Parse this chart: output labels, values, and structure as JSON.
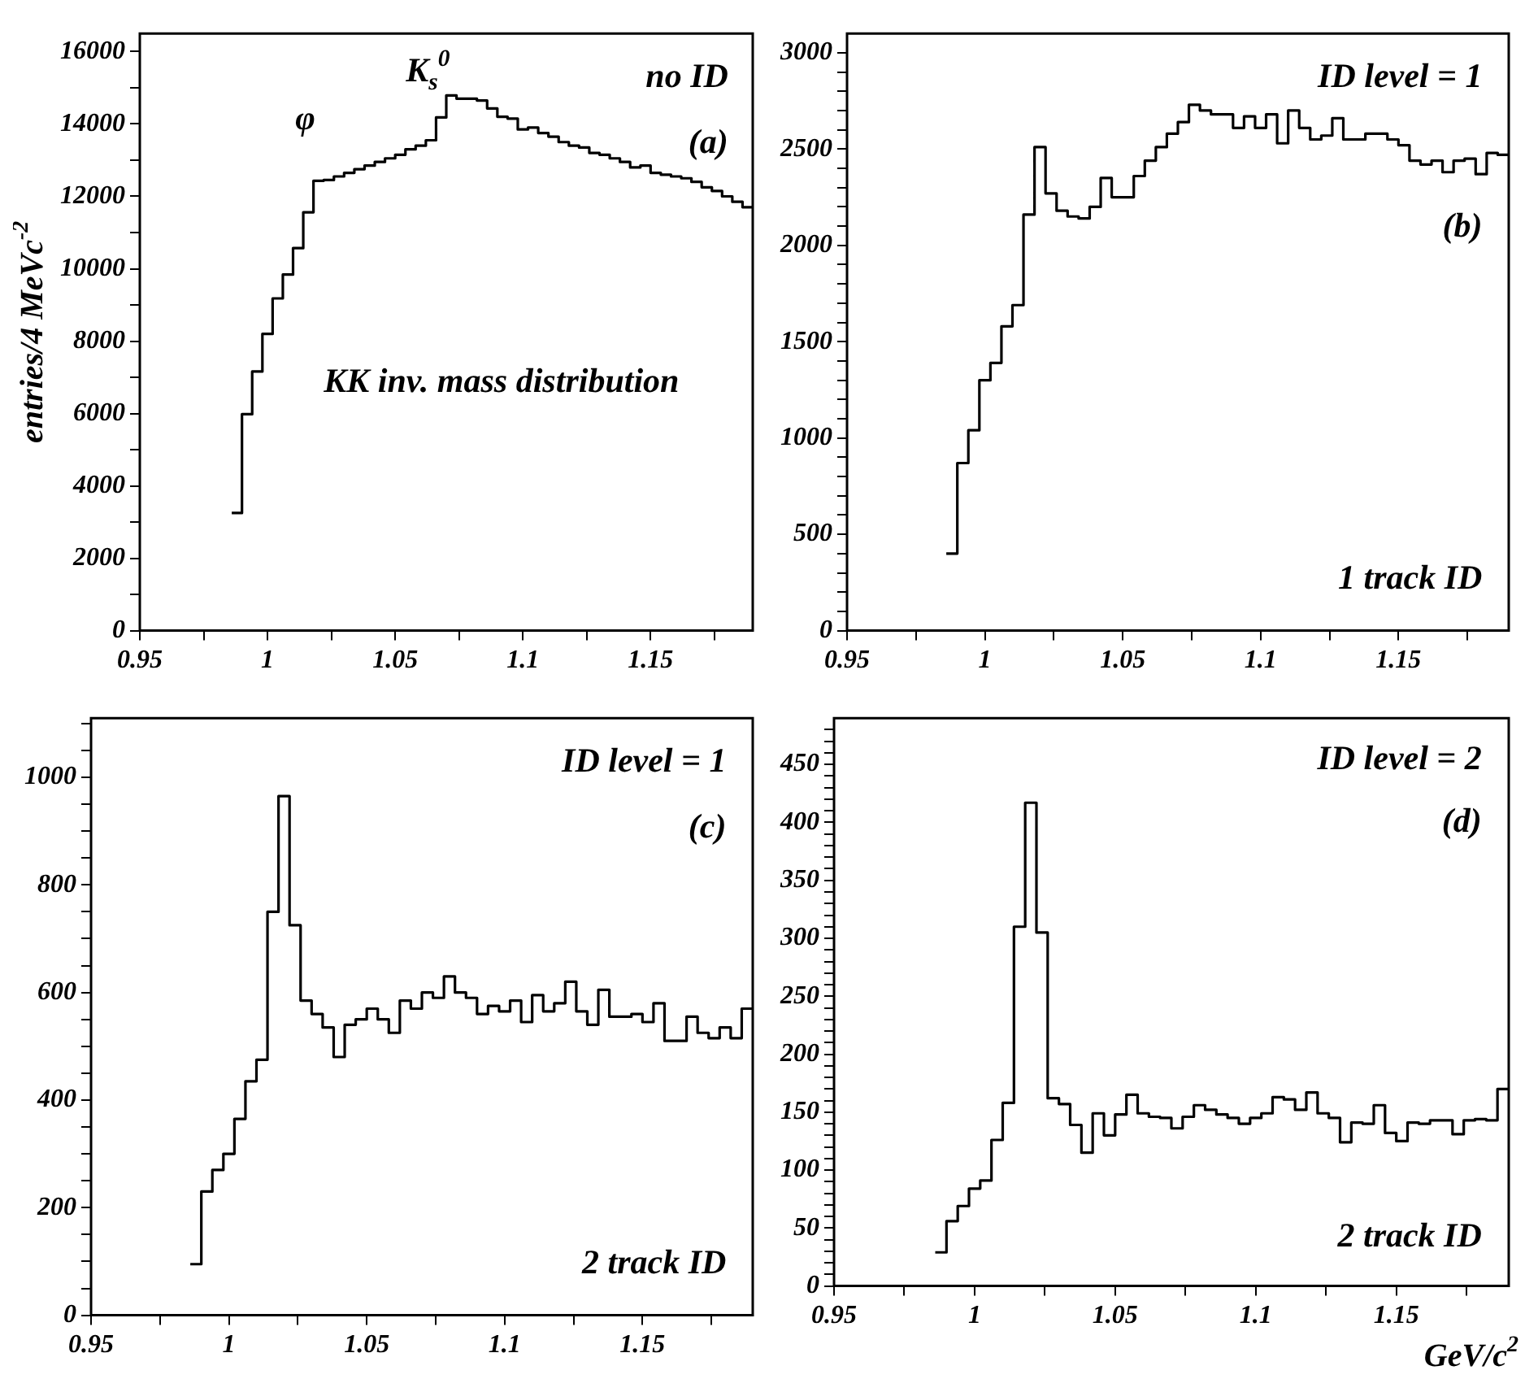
{
  "chart_data": [
    {
      "type": "histogram",
      "ylabel": "entries/4 MeVc$^{-2}$",
      "color": "#000000",
      "grid": false,
      "annotations": [
        "no ID",
        "(a)",
        "φ",
        "K$_{s}$$^{0}$",
        "KK inv. mass distribution"
      ],
      "bins": [
        0.986,
        0.99,
        0.994,
        0.998,
        1.002,
        1.006,
        1.01,
        1.014,
        1.018,
        1.022,
        1.026,
        1.03,
        1.034,
        1.038,
        1.042,
        1.046,
        1.05,
        1.054,
        1.058,
        1.062,
        1.066,
        1.07,
        1.074,
        1.078,
        1.082,
        1.086,
        1.09,
        1.094,
        1.098,
        1.102,
        1.106,
        1.11,
        1.114,
        1.118,
        1.122,
        1.126,
        1.13,
        1.134,
        1.138,
        1.142,
        1.146,
        1.15,
        1.154,
        1.158,
        1.162,
        1.166,
        1.17,
        1.174,
        1.178,
        1.182,
        1.186,
        1.19
      ],
      "values": [
        3250,
        5980,
        7160,
        8200,
        9180,
        9840,
        10570,
        11560,
        12430,
        12450,
        12550,
        12650,
        12750,
        12850,
        12950,
        13050,
        13150,
        13300,
        13400,
        13550,
        14180,
        14790,
        14700,
        14700,
        14650,
        14430,
        14200,
        14150,
        13850,
        13900,
        13750,
        13650,
        13500,
        13400,
        13350,
        13200,
        13150,
        13050,
        12950,
        12800,
        12850,
        12650,
        12600,
        12550,
        12500,
        12400,
        12250,
        12150,
        12000,
        11850,
        11700
      ],
      "xlim": [
        0.95,
        1.19
      ],
      "xticks": [
        0.95,
        {
          "value": 0.975,
          "label": null
        },
        1,
        {
          "value": 1.025,
          "label": null
        },
        1.05,
        {
          "value": 1.075,
          "label": null
        },
        1.1,
        {
          "value": 1.125,
          "label": null
        },
        1.15,
        {
          "value": 1.175,
          "label": null
        }
      ],
      "ylim": [
        0,
        16500
      ],
      "yticks": [
        0,
        {
          "value": 1000,
          "label": null
        },
        2000,
        {
          "value": 3000,
          "label": null
        },
        4000,
        {
          "value": 5000,
          "label": null
        },
        6000,
        {
          "value": 7000,
          "label": null
        },
        8000,
        {
          "value": 9000,
          "label": null
        },
        10000,
        {
          "value": 11000,
          "label": null
        },
        12000,
        {
          "value": 13000,
          "label": null
        },
        14000,
        {
          "value": 15000,
          "label": null
        },
        16000
      ]
    },
    {
      "type": "histogram",
      "color": "#000000",
      "grid": false,
      "annotations": [
        "ID level = 1",
        "(b)",
        "1 track ID"
      ],
      "bins": [
        0.986,
        0.99,
        0.994,
        0.998,
        1.002,
        1.006,
        1.01,
        1.014,
        1.018,
        1.022,
        1.026,
        1.03,
        1.034,
        1.038,
        1.042,
        1.046,
        1.05,
        1.054,
        1.058,
        1.062,
        1.066,
        1.07,
        1.074,
        1.078,
        1.082,
        1.086,
        1.09,
        1.094,
        1.098,
        1.102,
        1.106,
        1.11,
        1.114,
        1.118,
        1.122,
        1.126,
        1.13,
        1.134,
        1.138,
        1.142,
        1.146,
        1.15,
        1.154,
        1.158,
        1.162,
        1.166,
        1.17,
        1.174,
        1.178,
        1.182,
        1.186,
        1.19
      ],
      "values": [
        400,
        870,
        1040,
        1300,
        1390,
        1580,
        1690,
        2160,
        2510,
        2270,
        2180,
        2150,
        2140,
        2200,
        2350,
        2250,
        2250,
        2360,
        2440,
        2510,
        2580,
        2640,
        2730,
        2700,
        2680,
        2680,
        2610,
        2670,
        2610,
        2680,
        2530,
        2700,
        2610,
        2550,
        2570,
        2660,
        2550,
        2550,
        2580,
        2580,
        2550,
        2520,
        2440,
        2420,
        2440,
        2380,
        2440,
        2450,
        2370,
        2480,
        2470
      ],
      "xlim": [
        0.95,
        1.19
      ],
      "xticks": [
        0.95,
        {
          "value": 0.975,
          "label": null
        },
        1,
        {
          "value": 1.025,
          "label": null
        },
        1.05,
        {
          "value": 1.075,
          "label": null
        },
        1.1,
        {
          "value": 1.125,
          "label": null
        },
        1.15,
        {
          "value": 1.175,
          "label": null
        }
      ],
      "ylim": [
        0,
        3100
      ],
      "yticks": [
        0,
        {
          "value": 100,
          "label": null
        },
        {
          "value": 200,
          "label": null
        },
        {
          "value": 300,
          "label": null
        },
        {
          "value": 400,
          "label": null
        },
        500,
        {
          "value": 600,
          "label": null
        },
        {
          "value": 700,
          "label": null
        },
        {
          "value": 800,
          "label": null
        },
        {
          "value": 900,
          "label": null
        },
        1000,
        {
          "value": 1100,
          "label": null
        },
        {
          "value": 1200,
          "label": null
        },
        {
          "value": 1300,
          "label": null
        },
        {
          "value": 1400,
          "label": null
        },
        1500,
        {
          "value": 1600,
          "label": null
        },
        {
          "value": 1700,
          "label": null
        },
        {
          "value": 1800,
          "label": null
        },
        {
          "value": 1900,
          "label": null
        },
        2000,
        {
          "value": 2100,
          "label": null
        },
        {
          "value": 2200,
          "label": null
        },
        {
          "value": 2300,
          "label": null
        },
        {
          "value": 2400,
          "label": null
        },
        2500,
        {
          "value": 2600,
          "label": null
        },
        {
          "value": 2700,
          "label": null
        },
        {
          "value": 2800,
          "label": null
        },
        {
          "value": 2900,
          "label": null
        },
        3000
      ]
    },
    {
      "type": "histogram",
      "color": "#000000",
      "grid": false,
      "annotations": [
        "ID level = 1",
        "(c)",
        "2 track ID"
      ],
      "bins": [
        0.986,
        0.99,
        0.994,
        0.998,
        1.002,
        1.006,
        1.01,
        1.014,
        1.018,
        1.022,
        1.026,
        1.03,
        1.034,
        1.038,
        1.042,
        1.046,
        1.05,
        1.054,
        1.058,
        1.062,
        1.066,
        1.07,
        1.074,
        1.078,
        1.082,
        1.086,
        1.09,
        1.094,
        1.098,
        1.102,
        1.106,
        1.11,
        1.114,
        1.118,
        1.122,
        1.126,
        1.13,
        1.134,
        1.138,
        1.142,
        1.146,
        1.15,
        1.154,
        1.158,
        1.162,
        1.166,
        1.17,
        1.174,
        1.178,
        1.182,
        1.186,
        1.19
      ],
      "values": [
        95,
        230,
        270,
        300,
        365,
        435,
        475,
        750,
        965,
        725,
        585,
        560,
        535,
        480,
        540,
        550,
        570,
        550,
        525,
        585,
        570,
        600,
        590,
        630,
        600,
        590,
        560,
        575,
        565,
        585,
        545,
        595,
        565,
        580,
        620,
        565,
        540,
        605,
        555,
        555,
        560,
        545,
        580,
        510,
        510,
        555,
        525,
        515,
        535,
        515,
        570
      ],
      "xlim": [
        0.95,
        1.19
      ],
      "xticks": [
        0.95,
        {
          "value": 0.975,
          "label": null
        },
        1,
        {
          "value": 1.025,
          "label": null
        },
        1.05,
        {
          "value": 1.075,
          "label": null
        },
        1.1,
        {
          "value": 1.125,
          "label": null
        },
        1.15,
        {
          "value": 1.175,
          "label": null
        }
      ],
      "ylim": [
        0,
        1110
      ],
      "yticks": [
        0,
        {
          "value": 50,
          "label": null
        },
        {
          "value": 100,
          "label": null
        },
        {
          "value": 150,
          "label": null
        },
        200,
        {
          "value": 250,
          "label": null
        },
        {
          "value": 300,
          "label": null
        },
        {
          "value": 350,
          "label": null
        },
        400,
        {
          "value": 450,
          "label": null
        },
        {
          "value": 500,
          "label": null
        },
        {
          "value": 550,
          "label": null
        },
        600,
        {
          "value": 650,
          "label": null
        },
        {
          "value": 700,
          "label": null
        },
        {
          "value": 750,
          "label": null
        },
        800,
        {
          "value": 850,
          "label": null
        },
        {
          "value": 900,
          "label": null
        },
        {
          "value": 950,
          "label": null
        },
        1000,
        {
          "value": 1050,
          "label": null
        },
        {
          "value": 1100,
          "label": null
        }
      ]
    },
    {
      "type": "histogram",
      "xlabel": "GeV/c$^{2}$",
      "color": "#000000",
      "grid": false,
      "annotations": [
        "ID level = 2",
        "(d)",
        "2 track ID"
      ],
      "bins": [
        0.986,
        0.99,
        0.994,
        0.998,
        1.002,
        1.006,
        1.01,
        1.014,
        1.018,
        1.022,
        1.026,
        1.03,
        1.034,
        1.038,
        1.042,
        1.046,
        1.05,
        1.054,
        1.058,
        1.062,
        1.066,
        1.07,
        1.074,
        1.078,
        1.082,
        1.086,
        1.09,
        1.094,
        1.098,
        1.102,
        1.106,
        1.11,
        1.114,
        1.118,
        1.122,
        1.126,
        1.13,
        1.134,
        1.138,
        1.142,
        1.146,
        1.15,
        1.154,
        1.158,
        1.162,
        1.166,
        1.17,
        1.174,
        1.178,
        1.182,
        1.186,
        1.19
      ],
      "values": [
        29,
        56,
        69,
        84,
        91,
        126,
        158,
        310,
        417,
        305,
        162,
        157,
        139,
        115,
        149,
        130,
        148,
        165,
        149,
        146,
        145,
        136,
        146,
        156,
        152,
        148,
        145,
        140,
        145,
        149,
        163,
        161,
        152,
        167,
        149,
        145,
        124,
        141,
        140,
        156,
        132,
        125,
        141,
        140,
        143,
        143,
        131,
        143,
        144,
        143,
        170
      ],
      "xlim": [
        0.95,
        1.19
      ],
      "xticks": [
        0.95,
        {
          "value": 0.975,
          "label": null
        },
        1,
        {
          "value": 1.025,
          "label": null
        },
        1.05,
        {
          "value": 1.075,
          "label": null
        },
        1.1,
        {
          "value": 1.125,
          "label": null
        },
        1.15,
        {
          "value": 1.175,
          "label": null
        }
      ],
      "ylim": [
        0,
        490
      ],
      "yticks": [
        0,
        {
          "value": 10,
          "label": null
        },
        {
          "value": 20,
          "label": null
        },
        {
          "value": 30,
          "label": null
        },
        {
          "value": 40,
          "label": null
        },
        50,
        {
          "value": 60,
          "label": null
        },
        {
          "value": 70,
          "label": null
        },
        {
          "value": 80,
          "label": null
        },
        {
          "value": 90,
          "label": null
        },
        100,
        {
          "value": 110,
          "label": null
        },
        {
          "value": 120,
          "label": null
        },
        {
          "value": 130,
          "label": null
        },
        {
          "value": 140,
          "label": null
        },
        150,
        {
          "value": 160,
          "label": null
        },
        {
          "value": 170,
          "label": null
        },
        {
          "value": 180,
          "label": null
        },
        {
          "value": 190,
          "label": null
        },
        200,
        {
          "value": 210,
          "label": null
        },
        {
          "value": 220,
          "label": null
        },
        {
          "value": 230,
          "label": null
        },
        {
          "value": 240,
          "label": null
        },
        250,
        {
          "value": 260,
          "label": null
        },
        {
          "value": 270,
          "label": null
        },
        {
          "value": 280,
          "label": null
        },
        {
          "value": 290,
          "label": null
        },
        300,
        {
          "value": 310,
          "label": null
        },
        {
          "value": 320,
          "label": null
        },
        {
          "value": 330,
          "label": null
        },
        {
          "value": 340,
          "label": null
        },
        350,
        {
          "value": 360,
          "label": null
        },
        {
          "value": 370,
          "label": null
        },
        {
          "value": 380,
          "label": null
        },
        {
          "value": 390,
          "label": null
        },
        400,
        {
          "value": 410,
          "label": null
        },
        {
          "value": 420,
          "label": null
        },
        {
          "value": 430,
          "label": null
        },
        {
          "value": 440,
          "label": null
        },
        450,
        {
          "value": 460,
          "label": null
        },
        {
          "value": 470,
          "label": null
        },
        {
          "value": 480,
          "label": null
        }
      ]
    }
  ]
}
